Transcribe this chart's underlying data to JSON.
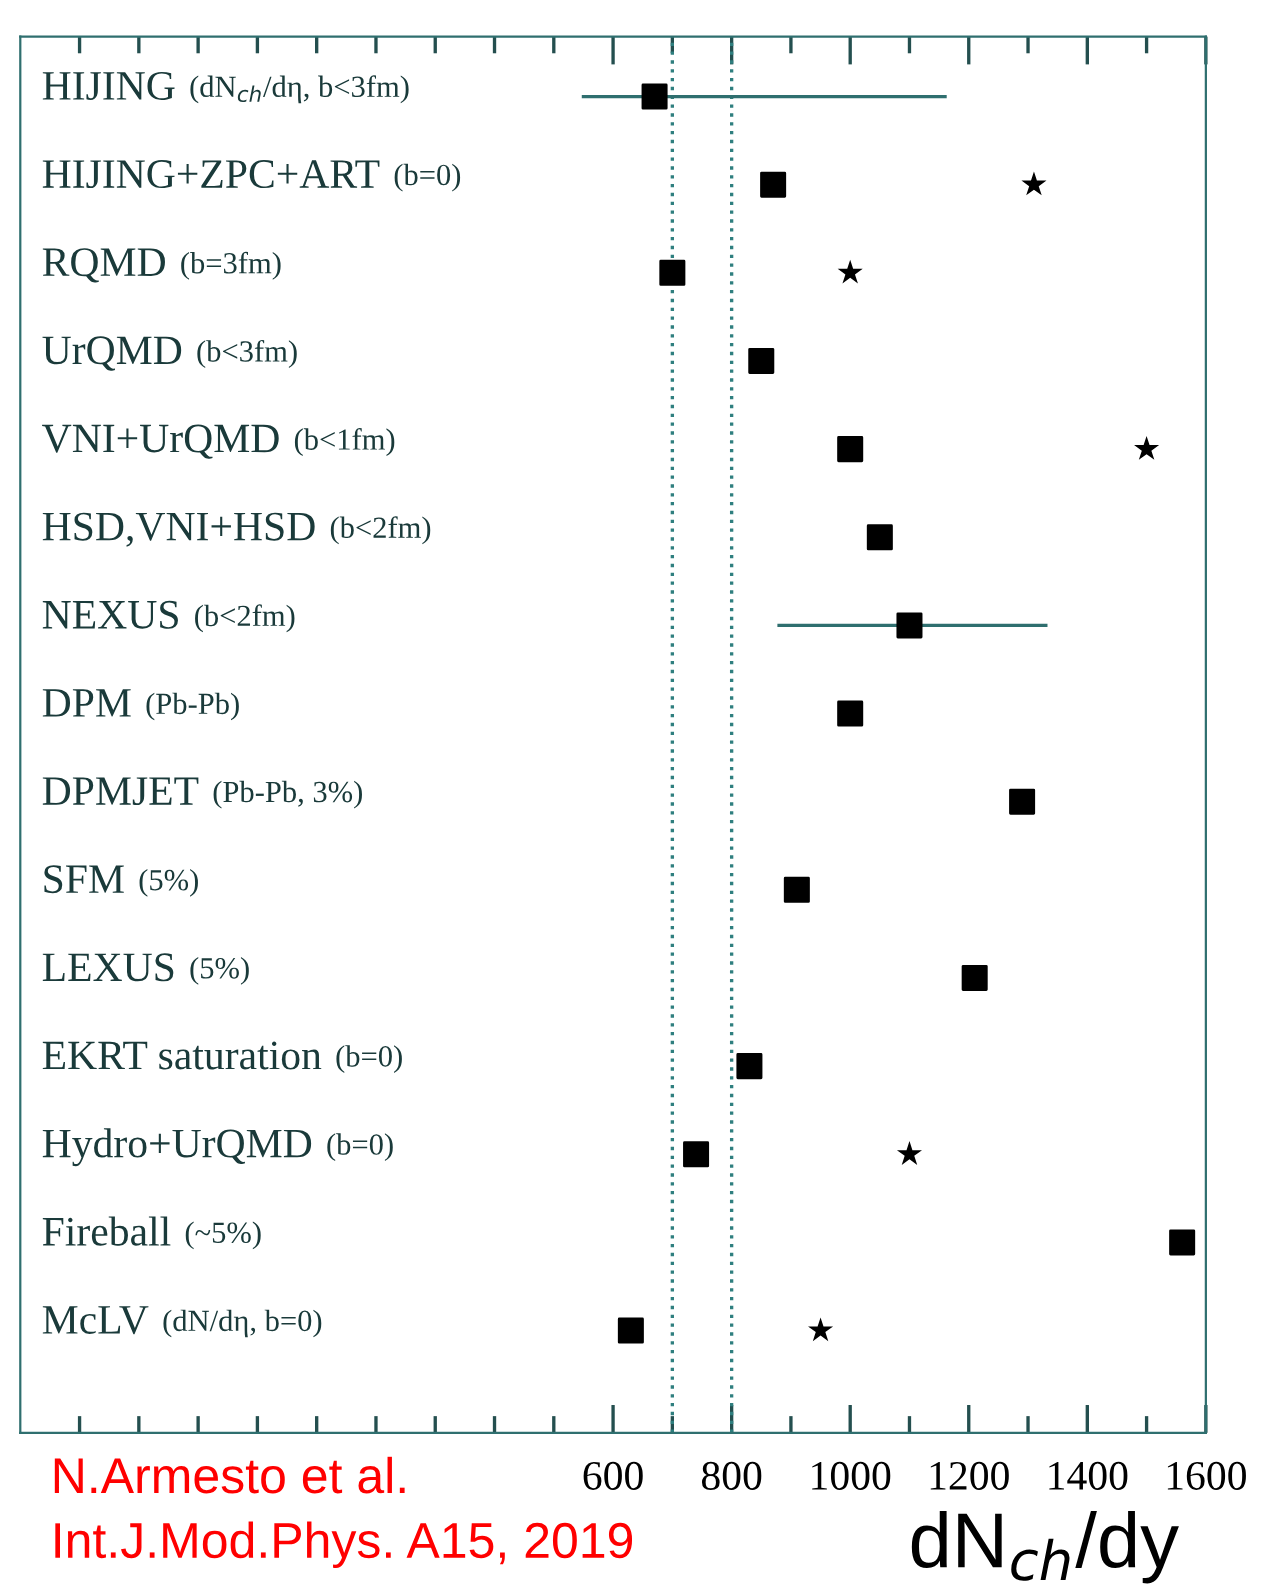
{
  "chart_data": {
    "type": "scatter",
    "orientation": "horizontal",
    "categories": [
      "HIJING (dN$_{ch}$/dη, b<3fm)",
      "HIJING+ZPC+ART (b=0)",
      "RQMD (b=3fm)",
      "UrQMD (b<3fm)",
      "VNI+UrQMD (b<1fm)",
      "HSD,VNI+HSD (b<2fm)",
      "NEXUS (b<2fm)",
      "DPM (Pb-Pb)",
      "DPMJET (Pb-Pb, 3%)",
      "SFM (5%)",
      "LEXUS (5%)",
      "EKRT saturation (b=0)",
      "Hydro+UrQMD (b=0)",
      "Fireball (~5%)",
      "McLV (dN/dη, b=0)"
    ],
    "series": [
      {
        "color": "#000000",
        "marker": "square",
        "values": [
          670,
          870,
          700,
          850,
          1000,
          1050,
          1100,
          1000,
          1290,
          910,
          1210,
          830,
          740,
          1560,
          630
        ],
        "errors": [
          [
            550,
            1160
          ],
          null,
          null,
          null,
          null,
          null,
          [
            880,
            1330
          ],
          null,
          null,
          null,
          null,
          null,
          null,
          null,
          null
        ]
      },
      {
        "color": "#000000",
        "marker": "star",
        "values": [
          null,
          1310,
          1000,
          null,
          1500,
          null,
          null,
          null,
          null,
          null,
          null,
          null,
          1100,
          null,
          950
        ]
      }
    ],
    "xlim": [
      -400,
      1600
    ],
    "xticks": [
      {
        "value": -300,
        "label": null
      },
      {
        "value": -200,
        "label": null
      },
      {
        "value": -100,
        "label": null
      },
      {
        "value": 0,
        "label": null
      },
      {
        "value": 100,
        "label": null
      },
      {
        "value": 200,
        "label": null
      },
      {
        "value": 300,
        "label": null
      },
      {
        "value": 400,
        "label": null
      },
      {
        "value": 500,
        "label": null
      },
      600,
      {
        "value": 700,
        "label": null
      },
      800,
      {
        "value": 900,
        "label": null
      },
      1000,
      {
        "value": 1100,
        "label": null
      },
      1200,
      {
        "value": 1300,
        "label": null
      },
      1400,
      {
        "value": 1500,
        "label": null
      },
      1600
    ],
    "xlabel": "dN$_{ch}$/dy",
    "ref_lines": [
      {
        "axis": "x",
        "value": 700,
        "line_style": "dotted",
        "color": "#2f7f7f"
      },
      {
        "axis": "x",
        "value": 800,
        "line_style": "dotted",
        "color": "#2f7f7f"
      }
    ],
    "annotations": [
      "N.Armesto et al.\nInt.J.Mod.Phys. A15, 2019"
    ],
    "grid": false,
    "legend": false
  }
}
